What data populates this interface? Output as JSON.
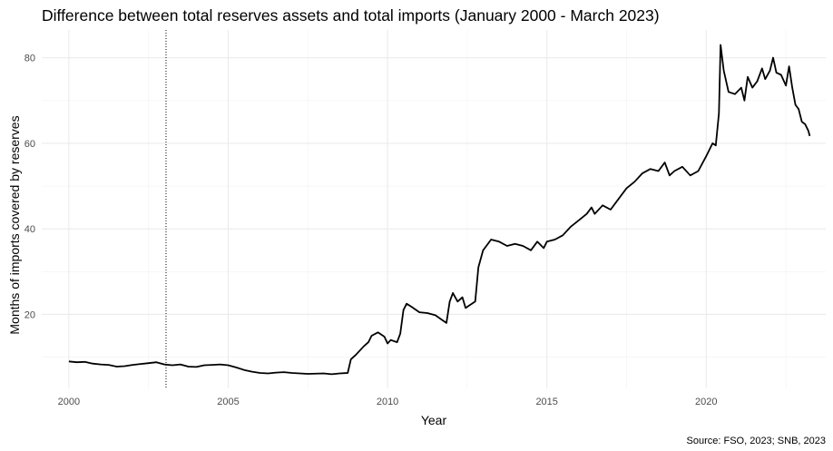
{
  "chart_data": {
    "type": "line",
    "title": "Difference between total reserves assets and total imports (January 2000 - March 2023)",
    "xlabel": "Year",
    "ylabel": "Months of imports covered by reserves",
    "caption": "Source: FSO, 2023; SNB, 2023",
    "xlim": [
      1999.15,
      2023.75
    ],
    "ylim": [
      2.7,
      86.5
    ],
    "x_ticks": [
      2000,
      2005,
      2010,
      2015,
      2020
    ],
    "x_tick_labels": [
      "2000",
      "2005",
      "2010",
      "2015",
      "2020"
    ],
    "y_ticks": [
      20,
      40,
      60,
      80
    ],
    "y_tick_labels": [
      "20",
      "40",
      "60",
      "80"
    ],
    "grid": true,
    "reference_line": {
      "x": 2003.05,
      "style": "dotted"
    },
    "series": [
      {
        "points": [
          [
            2000.0,
            9.0
          ],
          [
            2000.25,
            8.8
          ],
          [
            2000.5,
            8.9
          ],
          [
            2000.75,
            8.5
          ],
          [
            2001.0,
            8.3
          ],
          [
            2001.25,
            8.2
          ],
          [
            2001.5,
            7.8
          ],
          [
            2001.75,
            7.9
          ],
          [
            2002.0,
            8.2
          ],
          [
            2002.25,
            8.4
          ],
          [
            2002.5,
            8.6
          ],
          [
            2002.75,
            8.8
          ],
          [
            2003.0,
            8.3
          ],
          [
            2003.25,
            8.1
          ],
          [
            2003.5,
            8.3
          ],
          [
            2003.75,
            7.8
          ],
          [
            2004.0,
            7.7
          ],
          [
            2004.25,
            8.1
          ],
          [
            2004.5,
            8.2
          ],
          [
            2004.75,
            8.3
          ],
          [
            2005.0,
            8.1
          ],
          [
            2005.25,
            7.6
          ],
          [
            2005.5,
            7.0
          ],
          [
            2005.75,
            6.6
          ],
          [
            2006.0,
            6.3
          ],
          [
            2006.25,
            6.2
          ],
          [
            2006.5,
            6.4
          ],
          [
            2006.75,
            6.5
          ],
          [
            2007.0,
            6.3
          ],
          [
            2007.5,
            6.1
          ],
          [
            2008.0,
            6.2
          ],
          [
            2008.25,
            6.0
          ],
          [
            2008.5,
            6.2
          ],
          [
            2008.75,
            6.3
          ],
          [
            2008.85,
            9.5
          ],
          [
            2009.0,
            10.5
          ],
          [
            2009.25,
            12.5
          ],
          [
            2009.4,
            13.5
          ],
          [
            2009.5,
            15.0
          ],
          [
            2009.7,
            15.8
          ],
          [
            2009.9,
            14.8
          ],
          [
            2010.0,
            13.2
          ],
          [
            2010.1,
            14.0
          ],
          [
            2010.3,
            13.5
          ],
          [
            2010.4,
            15.5
          ],
          [
            2010.5,
            21.0
          ],
          [
            2010.6,
            22.5
          ],
          [
            2010.75,
            21.8
          ],
          [
            2011.0,
            20.5
          ],
          [
            2011.25,
            20.3
          ],
          [
            2011.5,
            19.8
          ],
          [
            2011.75,
            18.5
          ],
          [
            2011.85,
            18.0
          ],
          [
            2011.95,
            23.0
          ],
          [
            2012.05,
            25.0
          ],
          [
            2012.2,
            23.0
          ],
          [
            2012.35,
            24.0
          ],
          [
            2012.45,
            21.5
          ],
          [
            2012.55,
            22.0
          ],
          [
            2012.75,
            23.0
          ],
          [
            2012.85,
            31.0
          ],
          [
            2013.0,
            35.0
          ],
          [
            2013.1,
            36.0
          ],
          [
            2013.25,
            37.5
          ],
          [
            2013.5,
            37.0
          ],
          [
            2013.75,
            36.0
          ],
          [
            2014.0,
            36.5
          ],
          [
            2014.25,
            36.0
          ],
          [
            2014.5,
            35.0
          ],
          [
            2014.7,
            37.0
          ],
          [
            2014.9,
            35.5
          ],
          [
            2015.0,
            37.0
          ],
          [
            2015.25,
            37.5
          ],
          [
            2015.5,
            38.5
          ],
          [
            2015.75,
            40.5
          ],
          [
            2016.0,
            42.0
          ],
          [
            2016.25,
            43.5
          ],
          [
            2016.4,
            45.0
          ],
          [
            2016.5,
            43.5
          ],
          [
            2016.75,
            45.5
          ],
          [
            2017.0,
            44.5
          ],
          [
            2017.25,
            47.0
          ],
          [
            2017.5,
            49.5
          ],
          [
            2017.75,
            51.0
          ],
          [
            2018.0,
            53.0
          ],
          [
            2018.25,
            54.0
          ],
          [
            2018.5,
            53.5
          ],
          [
            2018.7,
            55.5
          ],
          [
            2018.85,
            52.5
          ],
          [
            2019.0,
            53.5
          ],
          [
            2019.25,
            54.5
          ],
          [
            2019.5,
            52.5
          ],
          [
            2019.75,
            53.5
          ],
          [
            2020.0,
            57.0
          ],
          [
            2020.1,
            58.5
          ],
          [
            2020.2,
            60.0
          ],
          [
            2020.3,
            59.5
          ],
          [
            2020.4,
            67.0
          ],
          [
            2020.45,
            83.0
          ],
          [
            2020.55,
            77.0
          ],
          [
            2020.7,
            72.0
          ],
          [
            2020.9,
            71.5
          ],
          [
            2021.1,
            73.0
          ],
          [
            2021.2,
            70.0
          ],
          [
            2021.3,
            75.5
          ],
          [
            2021.45,
            73.0
          ],
          [
            2021.6,
            74.5
          ],
          [
            2021.75,
            77.5
          ],
          [
            2021.85,
            75.0
          ],
          [
            2022.0,
            77.0
          ],
          [
            2022.1,
            80.0
          ],
          [
            2022.2,
            76.5
          ],
          [
            2022.35,
            76.0
          ],
          [
            2022.5,
            73.5
          ],
          [
            2022.6,
            78.0
          ],
          [
            2022.7,
            73.0
          ],
          [
            2022.8,
            69.0
          ],
          [
            2022.9,
            68.0
          ],
          [
            2023.0,
            65.0
          ],
          [
            2023.1,
            64.5
          ],
          [
            2023.2,
            63.0
          ],
          [
            2023.25,
            61.7
          ]
        ]
      }
    ]
  }
}
